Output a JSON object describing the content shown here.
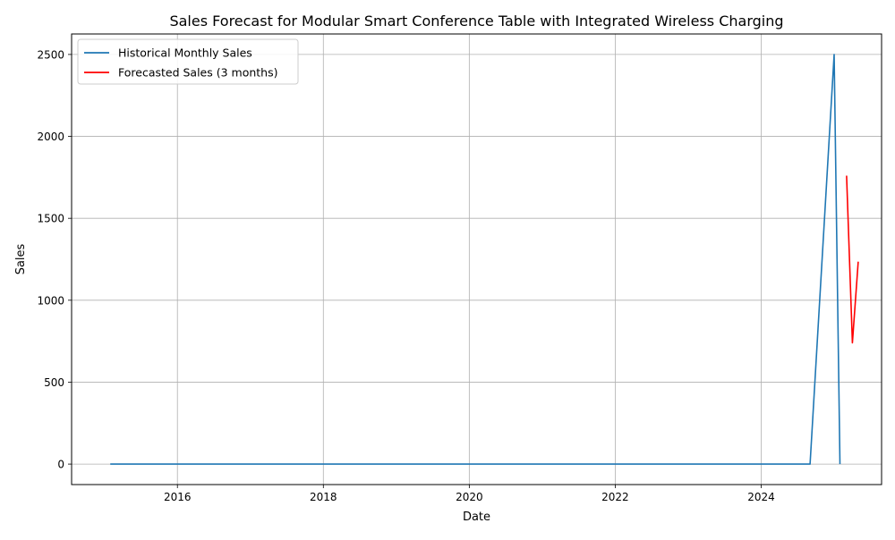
{
  "chart_data": {
    "type": "line",
    "title": "Sales Forecast for Modular Smart Conference Table with Integrated Wireless Charging",
    "xlabel": "Date",
    "ylabel": "Sales",
    "xlim": [
      2014.55,
      2025.65
    ],
    "ylim": [
      -125,
      2625
    ],
    "x_ticks": [
      {
        "value": 2016,
        "label": "2016"
      },
      {
        "value": 2018,
        "label": "2018"
      },
      {
        "value": 2020,
        "label": "2020"
      },
      {
        "value": 2022,
        "label": "2022"
      },
      {
        "value": 2024,
        "label": "2024"
      }
    ],
    "y_ticks": [
      {
        "value": 0,
        "label": "0"
      },
      {
        "value": 500,
        "label": "500"
      },
      {
        "value": 1000,
        "label": "1000"
      },
      {
        "value": 1500,
        "label": "1500"
      },
      {
        "value": 2000,
        "label": "2000"
      },
      {
        "value": 2500,
        "label": "2500"
      }
    ],
    "grid": true,
    "legend": {
      "position": "top-left"
    },
    "series": [
      {
        "name": "Historical Monthly Sales",
        "color": "#1f77b4",
        "points": [
          {
            "x": 2015.08,
            "y": 0
          },
          {
            "x": 2024.67,
            "y": 0
          },
          {
            "x": 2025.0,
            "y": 2500
          },
          {
            "x": 2025.08,
            "y": 0
          }
        ]
      },
      {
        "name": "Forecasted Sales (3 months)",
        "color": "#ff0000",
        "points": [
          {
            "x": 2025.17,
            "y": 1760
          },
          {
            "x": 2025.25,
            "y": 740
          },
          {
            "x": 2025.33,
            "y": 1235
          }
        ]
      }
    ]
  }
}
